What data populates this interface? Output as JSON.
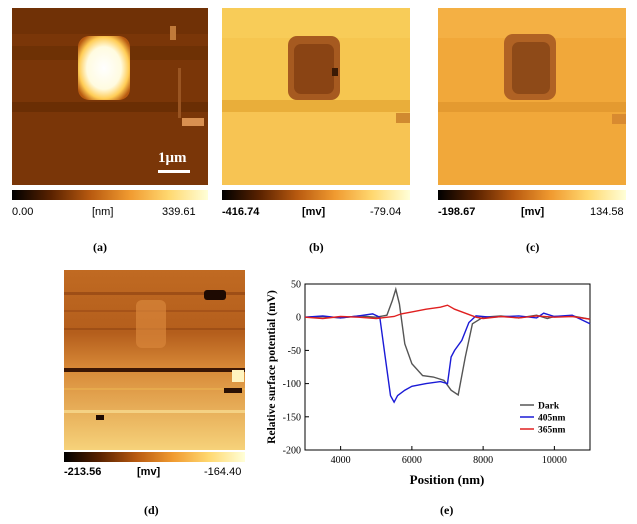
{
  "panels": {
    "a": {
      "label": "(a)",
      "scale_bar": "1μm",
      "colorbar": {
        "min": "0.00",
        "unit": "[nm]",
        "max": "339.61"
      }
    },
    "b": {
      "label": "(b)",
      "colorbar": {
        "min": "-416.74",
        "unit": "[mv]",
        "max": "-79.04"
      }
    },
    "c": {
      "label": "(c)",
      "colorbar": {
        "min": "-198.67",
        "unit": "[mv]",
        "max": "134.58"
      }
    },
    "d": {
      "label": "(d)",
      "colorbar": {
        "min": "-213.56",
        "unit": "[mv]",
        "max": "-164.40"
      }
    },
    "e": {
      "label": "(e)"
    }
  },
  "colors": {
    "dark": "#555555",
    "nm405": "#1a1ad6",
    "nm365": "#e02020"
  },
  "chart_data": {
    "type": "line",
    "xlabel": "Position (nm)",
    "ylabel": "Relative surface potential (mV)",
    "xlim": [
      3000,
      11000
    ],
    "ylim": [
      -200,
      50
    ],
    "xticks": [
      "4000",
      "6000",
      "8000",
      "10000"
    ],
    "yticks": [
      "50",
      "0",
      "-50",
      "-100",
      "-150",
      "-200"
    ],
    "legend_position": "bottom-right",
    "series": [
      {
        "name": "Dark",
        "x": [
          3000,
          3500,
          4000,
          4500,
          5000,
          5300,
          5450,
          5550,
          5650,
          5800,
          6000,
          6300,
          6600,
          6900,
          7100,
          7300,
          7500,
          7700,
          8000,
          8500,
          9000,
          9500,
          9800,
          10000,
          10500,
          11000
        ],
        "y": [
          0,
          1,
          -1,
          2,
          0,
          3,
          25,
          42,
          20,
          -40,
          -70,
          -88,
          -90,
          -95,
          -110,
          -117,
          -60,
          -10,
          0,
          2,
          -1,
          3,
          -2,
          1,
          2,
          -3
        ]
      },
      {
        "name": "405nm",
        "x": [
          3000,
          3500,
          4000,
          4500,
          4900,
          5100,
          5250,
          5400,
          5500,
          5600,
          5800,
          6000,
          6400,
          6800,
          7000,
          7100,
          7200,
          7400,
          7600,
          7800,
          8200,
          9000,
          9500,
          9700,
          10000,
          10500,
          11000
        ],
        "y": [
          0,
          2,
          -1,
          2,
          5,
          0,
          -60,
          -118,
          -128,
          -118,
          -110,
          -104,
          -100,
          -97,
          -100,
          -60,
          -50,
          -35,
          -8,
          2,
          0,
          2,
          -1,
          6,
          1,
          3,
          -10
        ]
      },
      {
        "name": "365nm",
        "x": [
          3000,
          3500,
          4000,
          4500,
          5000,
          5500,
          5700,
          6000,
          6400,
          6800,
          7000,
          7200,
          7500,
          7800,
          8000,
          8500,
          9000,
          9500,
          10000,
          10500,
          11000
        ],
        "y": [
          0,
          -2,
          1,
          0,
          -2,
          1,
          5,
          8,
          12,
          15,
          18,
          12,
          6,
          0,
          -2,
          1,
          -1,
          2,
          0,
          1,
          -3
        ]
      }
    ]
  }
}
